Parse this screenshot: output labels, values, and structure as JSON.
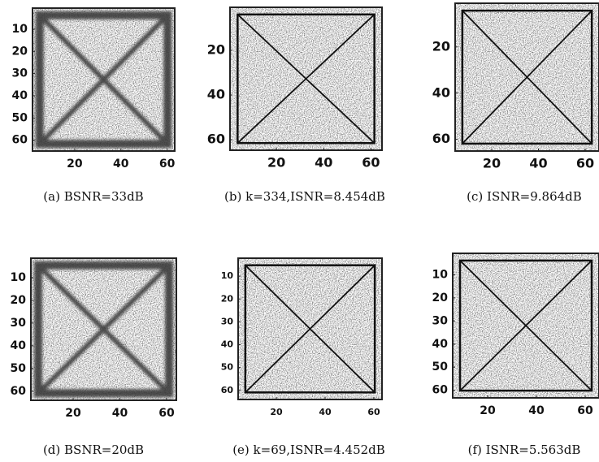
{
  "chart_data": [
    {
      "type": "image",
      "caption": "(a) BSNR=33dB",
      "xlim": [
        0,
        64
      ],
      "ylim": [
        0,
        64
      ],
      "xticks": [
        20,
        40,
        60
      ],
      "yticks": [
        10,
        20,
        30,
        40,
        50,
        60
      ]
    },
    {
      "type": "image",
      "caption": "(b) k=334,ISNR=8.454dB",
      "xlim": [
        0,
        64
      ],
      "ylim": [
        0,
        64
      ],
      "xticks": [
        20,
        40,
        60
      ],
      "yticks": [
        20,
        40,
        60
      ]
    },
    {
      "type": "image",
      "caption": "(c) ISNR=9.864dB",
      "xlim": [
        0,
        64
      ],
      "ylim": [
        0,
        64
      ],
      "xticks": [
        20,
        40,
        60
      ],
      "yticks": [
        20,
        40,
        60
      ]
    },
    {
      "type": "image",
      "caption": "(d) BSNR=20dB",
      "xlim": [
        0,
        64
      ],
      "ylim": [
        0,
        64
      ],
      "xticks": [
        20,
        40,
        60
      ],
      "yticks": [
        10,
        20,
        30,
        40,
        50,
        60
      ]
    },
    {
      "type": "image",
      "caption": "(e) k=69,ISNR=4.452dB",
      "xlim": [
        0,
        64
      ],
      "ylim": [
        0,
        64
      ],
      "xticks": [
        20,
        40,
        60
      ],
      "yticks": [
        10,
        20,
        30,
        40,
        50,
        60
      ]
    },
    {
      "type": "image",
      "caption": "(f) ISNR=5.563dB",
      "xlim": [
        0,
        64
      ],
      "ylim": [
        0,
        64
      ],
      "xticks": [
        20,
        40,
        60
      ],
      "yticks": [
        10,
        20,
        30,
        40,
        50,
        60
      ]
    }
  ]
}
